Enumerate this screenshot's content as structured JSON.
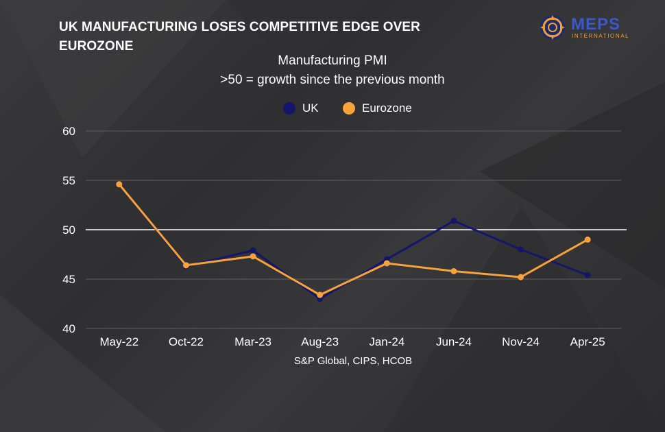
{
  "headline": "UK MANUFACTURING LOSES COMPETITIVE EDGE OVER EUROZONE",
  "logo": {
    "name": "MEPS",
    "tagline": "INTERNATIONAL"
  },
  "chart_data": {
    "type": "line",
    "title": "Manufacturing PMI",
    "subtitle": ">50 = growth since the previous month",
    "source": "S&P Global, CIPS, HCOB",
    "categories": [
      "May-22",
      "Oct-22",
      "Mar-23",
      "Aug-23",
      "Jan-24",
      "Jun-24",
      "Nov-24",
      "Apr-25"
    ],
    "ylim": [
      40,
      60
    ],
    "yticks": [
      "40",
      "45",
      "50",
      "55",
      "60"
    ],
    "reference_line": 50,
    "grid": true,
    "legend_position": "top-center",
    "series": [
      {
        "name": "UK",
        "color": "#14166b",
        "values": [
          54.6,
          46.3,
          47.9,
          43.0,
          47.0,
          50.9,
          48.0,
          45.4
        ]
      },
      {
        "name": "Eurozone",
        "color": "#f7a23a",
        "values": [
          54.6,
          46.4,
          47.3,
          43.4,
          46.6,
          45.8,
          45.2,
          49.0
        ]
      }
    ]
  }
}
